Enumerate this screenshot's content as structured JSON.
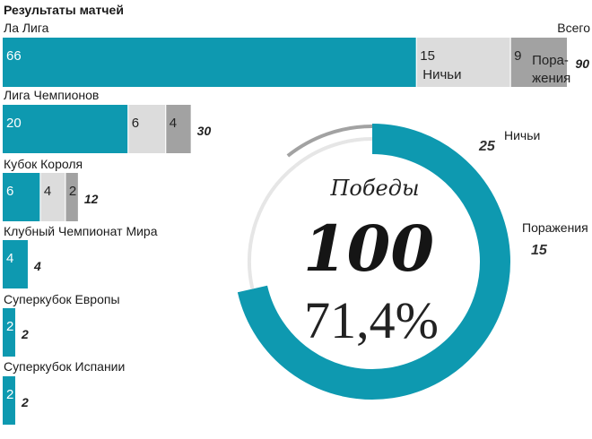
{
  "title": "Результаты матчей",
  "total_header": "Всего",
  "colors": {
    "wins": "#0e99b0",
    "draws": "#dcdcdc",
    "losses": "#a2a2a2",
    "ring_track": "#e6e6e6"
  },
  "chart_data": [
    {
      "type": "bar",
      "stacked": true,
      "orientation": "horizontal",
      "title": "Результаты матчей",
      "categories": [
        "Ла Лига",
        "Лига Чемпионов",
        "Кубок Короля",
        "Клубный Чемпионат Мира",
        "Суперкубок Европы",
        "Суперкубок Испании"
      ],
      "series": [
        {
          "key": "wins",
          "values": [
            66,
            20,
            6,
            4,
            2,
            2
          ]
        },
        {
          "key": "draws",
          "name": "Ничьи",
          "values": [
            15,
            6,
            4,
            0,
            0,
            0
          ]
        },
        {
          "key": "losses",
          "name": "Поражения",
          "values": [
            9,
            4,
            2,
            0,
            0,
            0
          ]
        }
      ],
      "totals": [
        90,
        30,
        12,
        4,
        2,
        2
      ],
      "total_label": "Всего",
      "inline_series_labels": {
        "draws": "Ничьи",
        "losses_line1": "Пора-",
        "losses_line2": "жения"
      }
    },
    {
      "type": "pie",
      "donut": true,
      "slices": [
        {
          "key": "wins",
          "label": "Победы",
          "value": 100
        },
        {
          "key": "draws",
          "label": "Ничьи",
          "value": 25
        },
        {
          "key": "losses",
          "label": "Поражения",
          "value": 15
        }
      ],
      "center": {
        "label": "Победы",
        "value": "100",
        "percent": "71,4%"
      }
    }
  ]
}
